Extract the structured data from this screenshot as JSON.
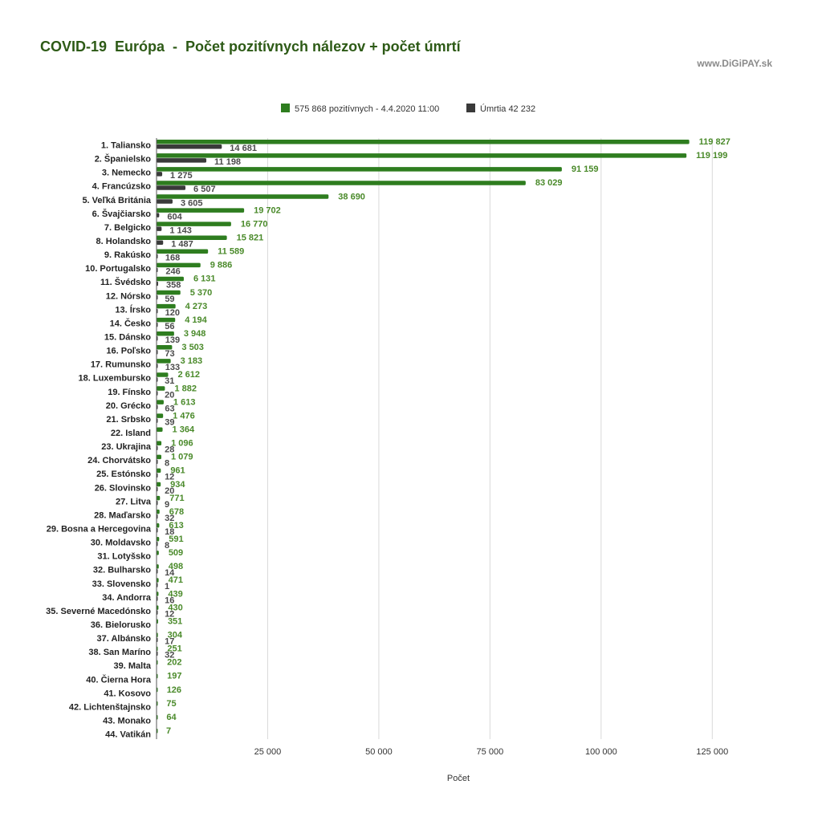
{
  "page": {
    "title": "COVID-19  Európa  -  Počet pozitívnych nálezov + počet úmrtí",
    "watermark": "www.DiGiPAY.sk"
  },
  "colors": {
    "positive": "#2e7d1f",
    "deaths": "#3a3a3a",
    "grid": "#d9d9d9",
    "axis": "#555555",
    "label_positive": "#4a8a2a"
  },
  "chart_data": {
    "type": "bar",
    "orientation": "horizontal",
    "xlabel": "Počet",
    "xlim": [
      0,
      130000
    ],
    "xticks": [
      25000,
      50000,
      75000,
      100000,
      125000
    ],
    "xtick_labels": [
      "25 000",
      "50 000",
      "75 000",
      "100 000",
      "125 000"
    ],
    "grid": "vertical",
    "legend_position": "top",
    "categories": [
      "1. Taliansko",
      "2. Španielsko",
      "3. Nemecko",
      "4. Francúzsko",
      "5. Veľká Británia",
      "6. Švajčiarsko",
      "7. Belgicko",
      "8. Holandsko",
      "9. Rakúsko",
      "10. Portugalsko",
      "11. Švédsko",
      "12. Nórsko",
      "13. Írsko",
      "14. Česko",
      "15. Dánsko",
      "16. Poľsko",
      "17. Rumunsko",
      "18. Luxembursko",
      "19. Fínsko",
      "20. Grécko",
      "21. Srbsko",
      "22. Island",
      "23. Ukrajina",
      "24. Chorvátsko",
      "25. Estónsko",
      "26. Slovinsko",
      "27. Litva",
      "28. Maďarsko",
      "29. Bosna a Hercegovina",
      "30. Moldavsko",
      "31. Lotyšsko",
      "32. Bulharsko",
      "33. Slovensko",
      "34. Andorra",
      "35. Severné Macedónsko",
      "36. Bielorusko",
      "37. Albánsko",
      "38. San Maríno",
      "39. Malta",
      "40. Čierna Hora",
      "41. Kosovo",
      "42. Lichtenštajnsko",
      "43. Monako",
      "44. Vatikán"
    ],
    "series": [
      {
        "name": "575 868 pozitívnych - 4.4.2020  11:00",
        "values": [
          119827,
          119199,
          91159,
          83029,
          38690,
          19702,
          16770,
          15821,
          11589,
          9886,
          6131,
          5370,
          4273,
          4194,
          3948,
          3503,
          3183,
          2612,
          1882,
          1613,
          1476,
          1364,
          1096,
          1079,
          961,
          934,
          771,
          678,
          613,
          591,
          509,
          498,
          471,
          439,
          430,
          351,
          304,
          251,
          202,
          197,
          126,
          75,
          64,
          7
        ],
        "labels": [
          "119 827",
          "119 199",
          "91 159",
          "83 029",
          "38 690",
          "19 702",
          "16 770",
          "15 821",
          "11 589",
          "9 886",
          "6 131",
          "5 370",
          "4 273",
          "4 194",
          "3 948",
          "3 503",
          "3 183",
          "2 612",
          "1 882",
          "1 613",
          "1 476",
          "1 364",
          "1 096",
          "1 079",
          "961",
          "934",
          "771",
          "678",
          "613",
          "591",
          "509",
          "498",
          "471",
          "439",
          "430",
          "351",
          "304",
          "251",
          "202",
          "197",
          "126",
          "75",
          "64",
          "7"
        ]
      },
      {
        "name": "Úmrtia 42 232",
        "values": [
          14681,
          11198,
          1275,
          6507,
          3605,
          604,
          1143,
          1487,
          168,
          246,
          358,
          59,
          120,
          56,
          139,
          73,
          133,
          31,
          20,
          63,
          39,
          null,
          28,
          8,
          12,
          20,
          9,
          32,
          18,
          8,
          null,
          14,
          1,
          16,
          12,
          null,
          17,
          32,
          null,
          null,
          null,
          null,
          null,
          null
        ],
        "labels": [
          "14 681",
          "11 198",
          "1 275",
          "6 507",
          "3 605",
          "604",
          "1 143",
          "1 487",
          "168",
          "246",
          "358",
          "59",
          "120",
          "56",
          "139",
          "73",
          "133",
          "31",
          "20",
          "63",
          "39",
          "",
          "28",
          "8",
          "12",
          "20",
          "9",
          "32",
          "18",
          "8",
          "",
          "14",
          "1",
          "16",
          "12",
          "",
          "17",
          "32",
          "",
          "",
          "",
          "",
          "",
          ""
        ]
      }
    ]
  }
}
